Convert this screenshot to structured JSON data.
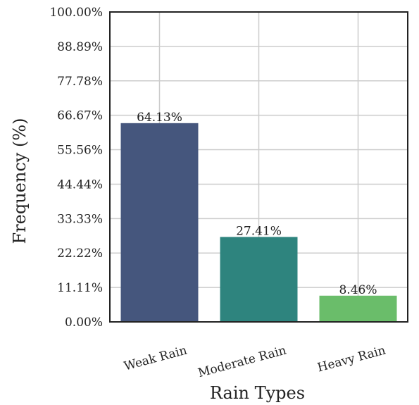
{
  "chart_data": {
    "type": "bar",
    "title": "",
    "xlabel": "Rain Types",
    "ylabel": "Frequency (%)",
    "categories": [
      "Weak Rain",
      "Moderate Rain",
      "Heavy Rain"
    ],
    "values": [
      64.13,
      27.41,
      8.46
    ],
    "value_labels": [
      "64.13%",
      "27.41%",
      "8.46%"
    ],
    "colors": [
      "#45567d",
      "#2e847e",
      "#6abd6a"
    ],
    "ylim": [
      0,
      100
    ],
    "yticks": [
      0,
      11.11,
      22.22,
      33.33,
      44.44,
      55.56,
      66.67,
      77.78,
      88.89,
      100
    ],
    "ytick_labels": [
      "0.00%",
      "11.11%",
      "22.22%",
      "33.33%",
      "44.44%",
      "55.56%",
      "66.67%",
      "77.78%",
      "88.89%",
      "100.00%"
    ],
    "grid": true,
    "legend": false
  }
}
